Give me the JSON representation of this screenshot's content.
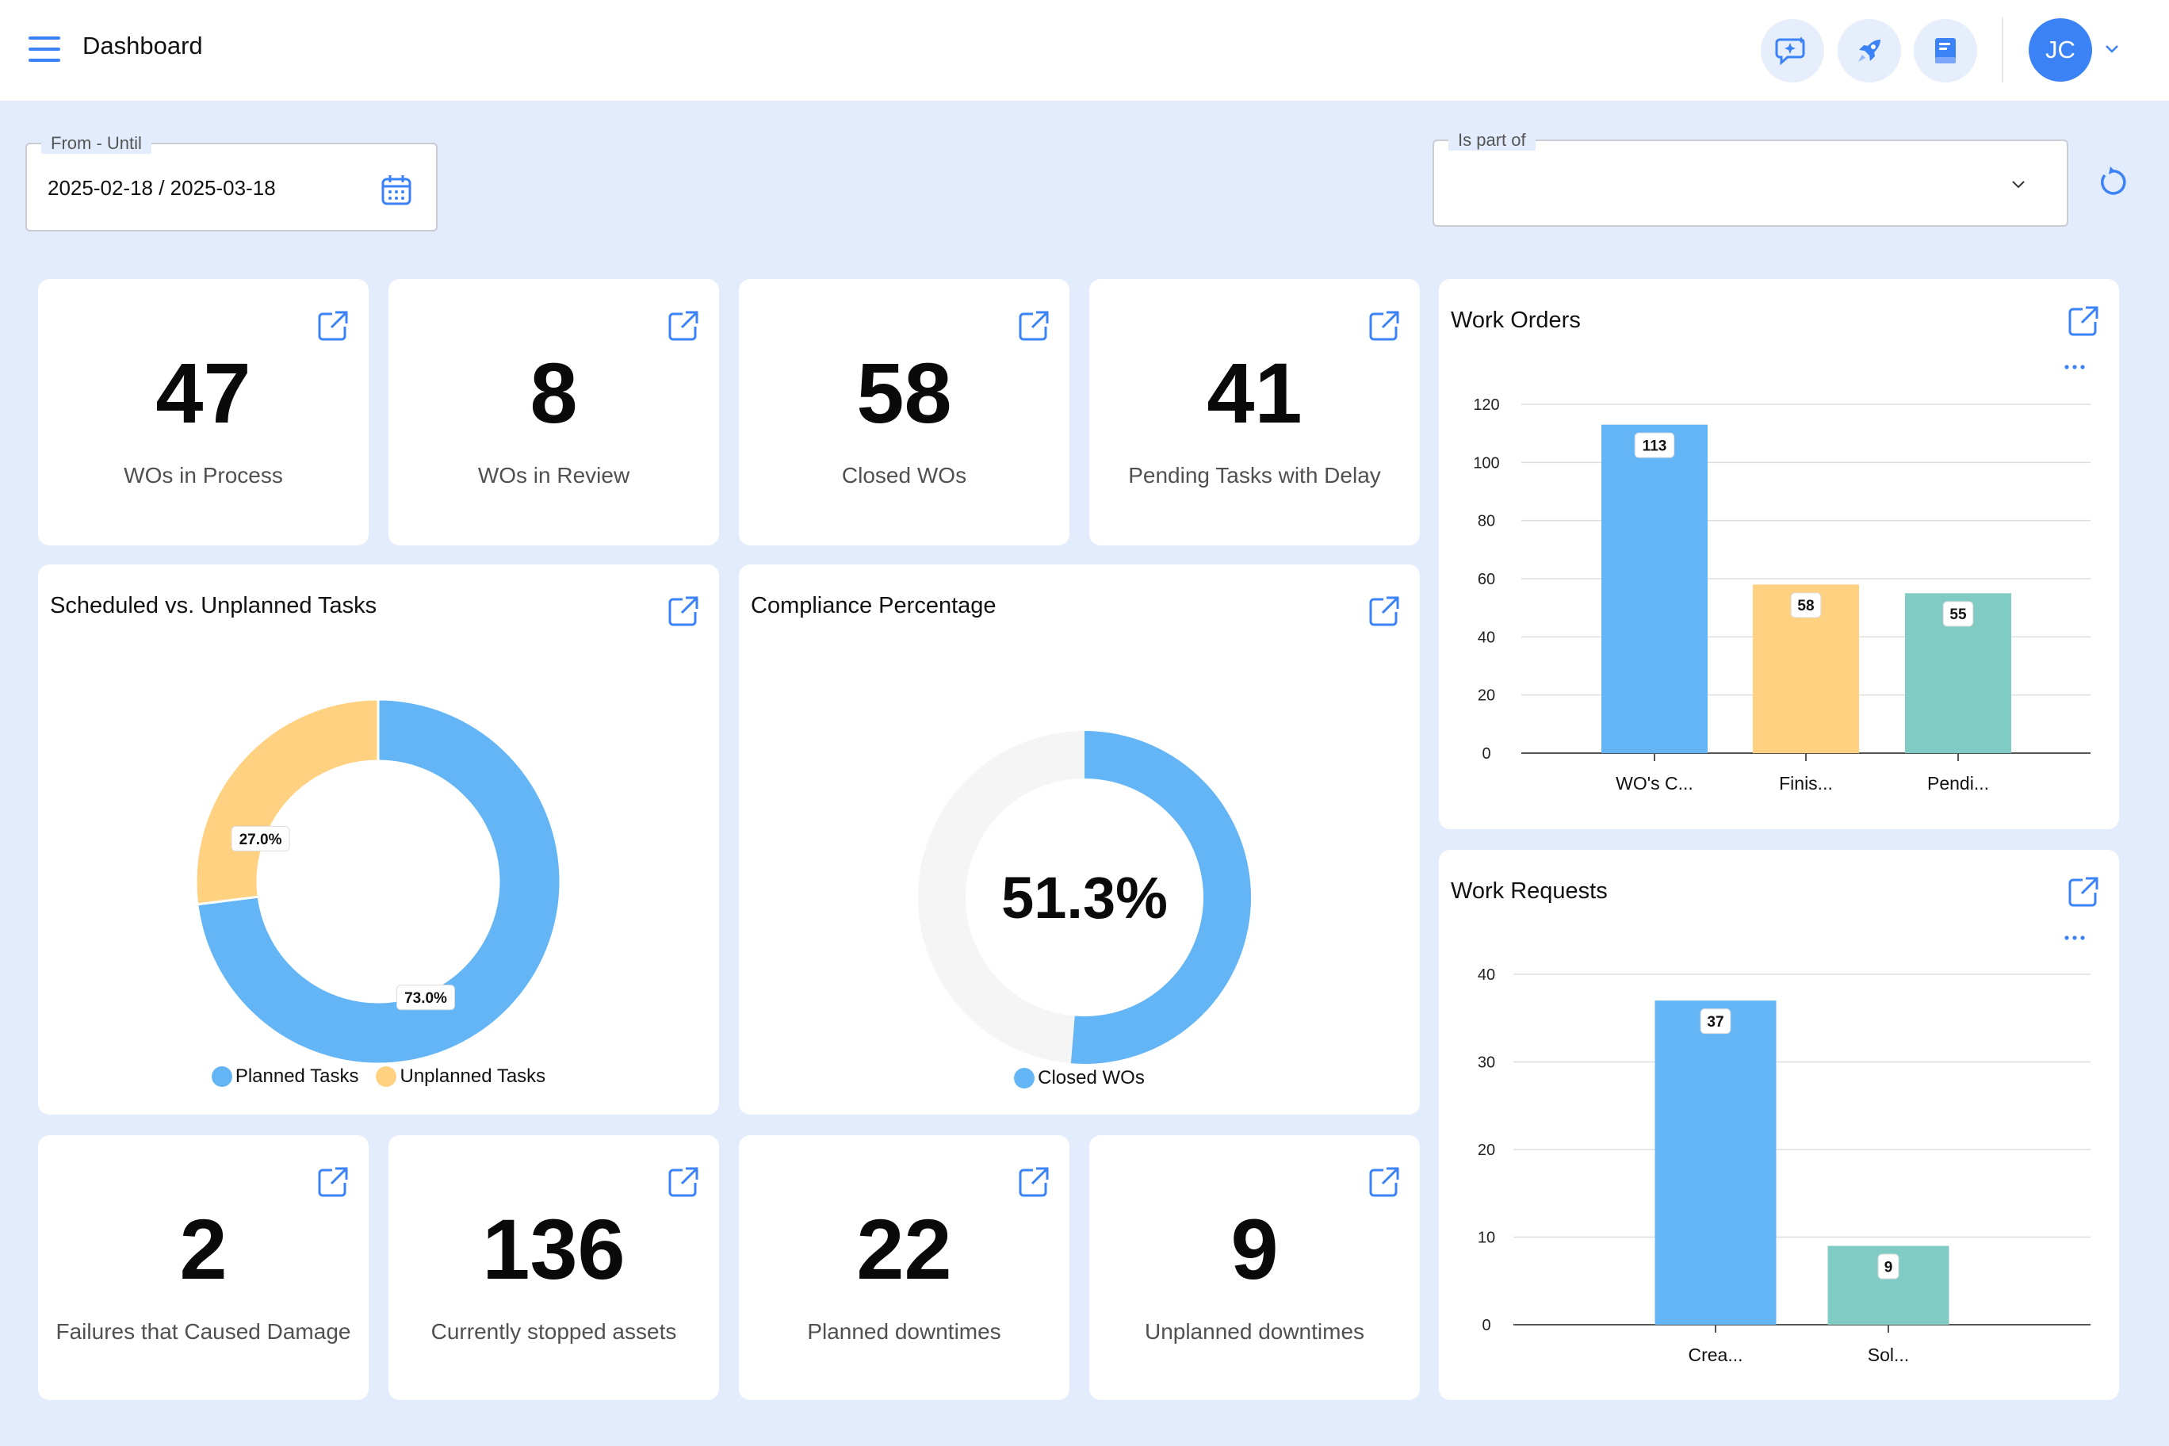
{
  "header": {
    "title": "Dashboard",
    "user_initials": "JC"
  },
  "icons": {
    "menu": "hamburger-icon",
    "chat": "chat-sparkle-icon",
    "launch": "rocket-icon",
    "docs": "book-icon",
    "calendar": "calendar-icon",
    "external": "external-link-icon",
    "reset": "refresh-icon",
    "more": "more-horizontal-icon"
  },
  "filters": {
    "date_label": "From - Until",
    "date_value": "2025-02-18 / 2025-03-18",
    "part_label": "Is part of",
    "part_value": ""
  },
  "kpis_top": [
    {
      "value": "47",
      "label": "WOs in Process"
    },
    {
      "value": "8",
      "label": "WOs in Review"
    },
    {
      "value": "58",
      "label": "Closed WOs"
    },
    {
      "value": "41",
      "label": "Pending Tasks with Delay"
    }
  ],
  "kpis_bottom": [
    {
      "value": "2",
      "label": "Failures that Caused Damage"
    },
    {
      "value": "136",
      "label": "Currently stopped assets"
    },
    {
      "value": "22",
      "label": "Planned downtimes"
    },
    {
      "value": "9",
      "label": "Unplanned downtimes"
    }
  ],
  "colors": {
    "accent": "#3b82f6",
    "blue": "#64b5f6",
    "yellow": "#ffd180",
    "teal": "#80cbc4",
    "track": "#f5f5f5"
  },
  "chart_data": [
    {
      "type": "pie",
      "title": "Scheduled vs. Unplanned Tasks",
      "categories": [
        "Planned Tasks",
        "Unplanned Tasks"
      ],
      "values": [
        73.0,
        27.0
      ],
      "data_labels": [
        "73.0%",
        "27.0%"
      ],
      "legend": "bottom"
    },
    {
      "type": "pie",
      "title": "Compliance Percentage",
      "categories": [
        "Closed WOs"
      ],
      "values": [
        51.3
      ],
      "center_label": "51.3%",
      "legend": "bottom"
    },
    {
      "type": "bar",
      "title": "Work Orders",
      "categories": [
        "WO's C...",
        "Finis...",
        "Pendi..."
      ],
      "values": [
        113,
        58,
        55
      ],
      "ylim": [
        0,
        120
      ],
      "yticks": [
        0,
        20,
        40,
        60,
        80,
        100,
        120
      ],
      "grid": true
    },
    {
      "type": "bar",
      "title": "Work Requests",
      "categories": [
        "Crea...",
        "Sol..."
      ],
      "values": [
        37,
        9
      ],
      "ylim": [
        0,
        40
      ],
      "yticks": [
        0,
        10,
        20,
        30,
        40
      ],
      "grid": true
    }
  ]
}
